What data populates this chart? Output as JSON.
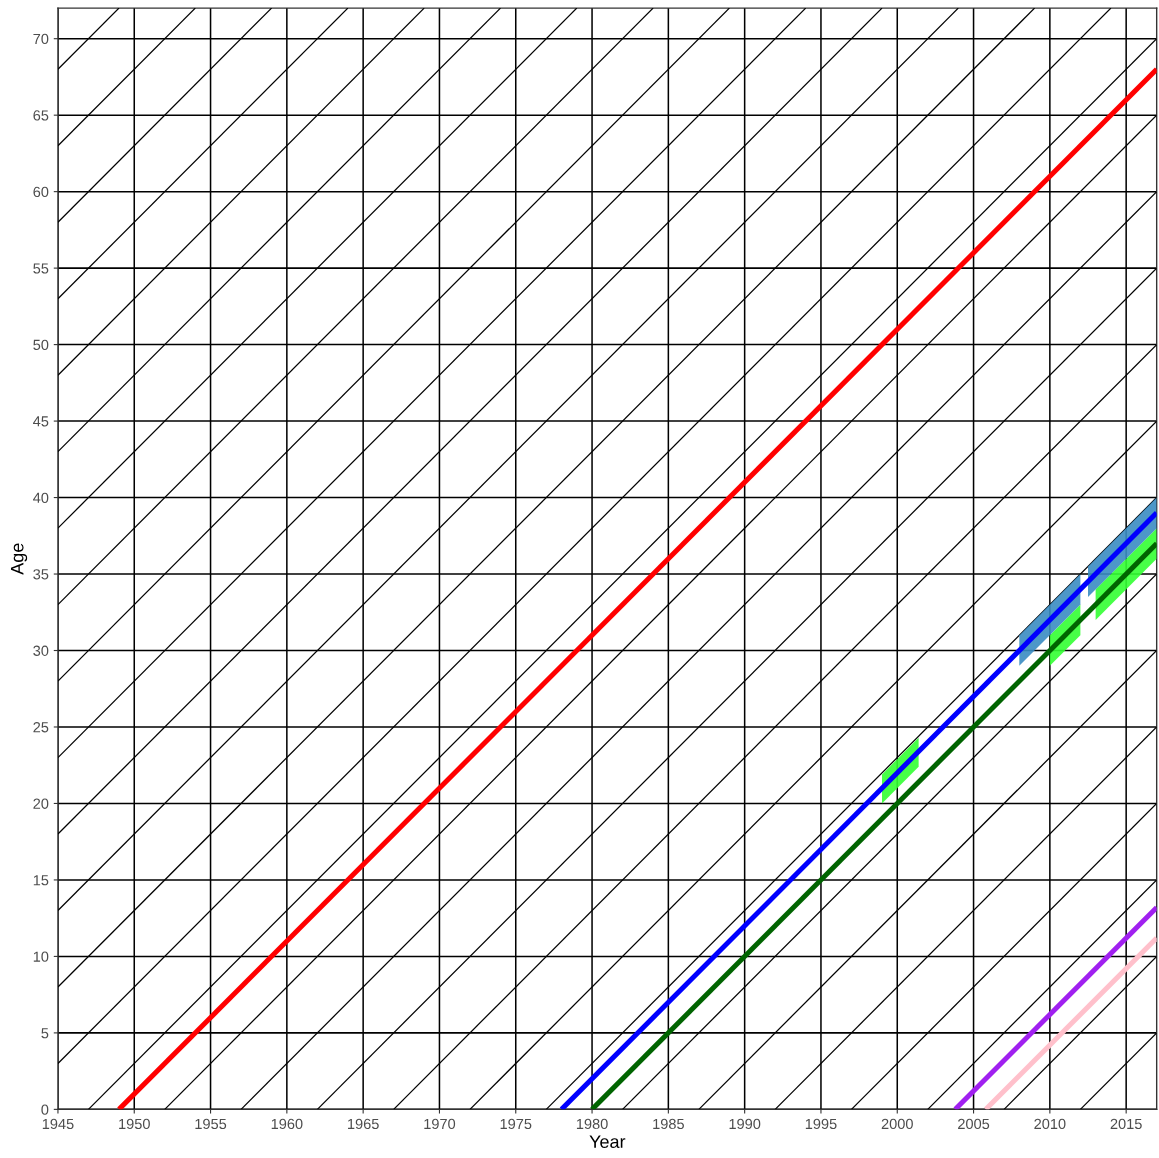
{
  "chart_data": {
    "type": "line",
    "xlabel": "Year",
    "ylabel": "Age",
    "xlim": [
      1945,
      2017
    ],
    "ylim": [
      0,
      72
    ],
    "xticks": [
      1945,
      1950,
      1955,
      1960,
      1965,
      1970,
      1975,
      1980,
      1985,
      1990,
      1995,
      2000,
      2005,
      2010,
      2015
    ],
    "yticks": [
      0,
      5,
      10,
      15,
      20,
      25,
      30,
      35,
      40,
      45,
      50,
      55,
      60,
      65,
      70
    ],
    "grid": true,
    "line_style": "solid",
    "marker": "none",
    "series": [
      {
        "color": "#000000",
        "x": [
          1945,
          1949
        ],
        "values": [
          68,
          72
        ]
      },
      {
        "color": "#000000",
        "x": [
          1945,
          1954
        ],
        "values": [
          63,
          72
        ]
      },
      {
        "color": "#000000",
        "x": [
          1945,
          1959
        ],
        "values": [
          58,
          72
        ]
      },
      {
        "color": "#000000",
        "x": [
          1945,
          1964
        ],
        "values": [
          53,
          72
        ]
      },
      {
        "color": "#000000",
        "x": [
          1945,
          1969
        ],
        "values": [
          48,
          72
        ]
      },
      {
        "color": "#000000",
        "x": [
          1945,
          1974
        ],
        "values": [
          43,
          72
        ]
      },
      {
        "color": "#000000",
        "x": [
          1945,
          1979
        ],
        "values": [
          38,
          72
        ]
      },
      {
        "color": "#000000",
        "x": [
          1945,
          1984
        ],
        "values": [
          33,
          72
        ]
      },
      {
        "color": "#000000",
        "x": [
          1945,
          1989
        ],
        "values": [
          28,
          72
        ]
      },
      {
        "color": "#000000",
        "x": [
          1945,
          1994
        ],
        "values": [
          23,
          72
        ]
      },
      {
        "color": "#000000",
        "x": [
          1945,
          1999
        ],
        "values": [
          18,
          72
        ]
      },
      {
        "color": "#000000",
        "x": [
          1945,
          2004
        ],
        "values": [
          13,
          72
        ]
      },
      {
        "color": "#000000",
        "x": [
          1945,
          2009
        ],
        "values": [
          8,
          72
        ]
      },
      {
        "color": "#000000",
        "x": [
          1945,
          2014
        ],
        "values": [
          3,
          72
        ]
      },
      {
        "color": "#000000",
        "x": [
          1947,
          2017
        ],
        "values": [
          0,
          70
        ]
      },
      {
        "color": "#000000",
        "x": [
          1952,
          2017
        ],
        "values": [
          0,
          65
        ]
      },
      {
        "color": "#000000",
        "x": [
          1957,
          2017
        ],
        "values": [
          0,
          60
        ]
      },
      {
        "color": "#000000",
        "x": [
          1962,
          2017
        ],
        "values": [
          0,
          55
        ]
      },
      {
        "color": "#000000",
        "x": [
          1967,
          2017
        ],
        "values": [
          0,
          50
        ]
      },
      {
        "color": "#000000",
        "x": [
          1972,
          2017
        ],
        "values": [
          0,
          45
        ]
      },
      {
        "color": "#000000",
        "x": [
          1977,
          2017
        ],
        "values": [
          0,
          40
        ]
      },
      {
        "color": "#000000",
        "x": [
          1982,
          2017
        ],
        "values": [
          0,
          35
        ]
      },
      {
        "color": "#000000",
        "x": [
          1987,
          2017
        ],
        "values": [
          0,
          30
        ]
      },
      {
        "color": "#000000",
        "x": [
          1992,
          2017
        ],
        "values": [
          0,
          25
        ]
      },
      {
        "color": "#000000",
        "x": [
          1997,
          2017
        ],
        "values": [
          0,
          20
        ]
      },
      {
        "color": "#000000",
        "x": [
          2002,
          2017
        ],
        "values": [
          0,
          15
        ]
      },
      {
        "color": "#000000",
        "x": [
          2007,
          2017
        ],
        "values": [
          0,
          10
        ]
      },
      {
        "color": "#000000",
        "x": [
          2012,
          2017
        ],
        "values": [
          0,
          5
        ]
      },
      {
        "color": "#33ff33",
        "x": [
          1999,
          2001.4
        ],
        "values": [
          null,
          null
        ],
        "lower": [
          20,
          22.4
        ],
        "upper": [
          21.9,
          24.3
        ]
      },
      {
        "color": "#33ff33",
        "x": [
          2010,
          2012
        ],
        "values": [
          null,
          null
        ],
        "lower": [
          29,
          31
        ],
        "upper": [
          31,
          33
        ]
      },
      {
        "color": "#33ff33",
        "x": [
          2013,
          2017
        ],
        "values": [
          null,
          null
        ],
        "lower": [
          32,
          36
        ],
        "upper": [
          34,
          38
        ]
      },
      {
        "color": "#3a8cc2",
        "x": [
          2008,
          2012
        ],
        "values": [
          null,
          null
        ],
        "lower": [
          29,
          33
        ],
        "upper": [
          31,
          35
        ]
      },
      {
        "color": "#3a8cc2",
        "x": [
          2012.5,
          2017
        ],
        "values": [
          null,
          null
        ],
        "lower": [
          33.5,
          38
        ],
        "upper": [
          35.5,
          40
        ]
      },
      {
        "color": "#ff0000",
        "x": [
          1949,
          2017
        ],
        "values": [
          0,
          68
        ]
      },
      {
        "color": "#0000ff",
        "x": [
          1978,
          2017
        ],
        "values": [
          0,
          39
        ]
      },
      {
        "color": "#006400",
        "x": [
          1980,
          2017
        ],
        "values": [
          0,
          37
        ]
      },
      {
        "color": "#a020f0",
        "x": [
          2003.8,
          2017
        ],
        "values": [
          0,
          13.2
        ]
      },
      {
        "color": "#ffc0cb",
        "x": [
          2005.8,
          2017
        ],
        "values": [
          0,
          11.2
        ]
      }
    ]
  }
}
